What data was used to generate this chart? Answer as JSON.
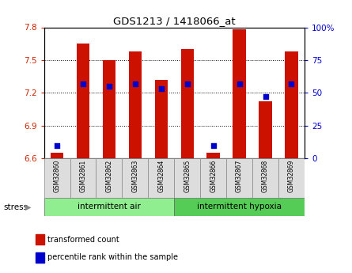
{
  "title": "GDS1213 / 1418066_at",
  "samples": [
    "GSM32860",
    "GSM32861",
    "GSM32862",
    "GSM32863",
    "GSM32864",
    "GSM32865",
    "GSM32866",
    "GSM32867",
    "GSM32868",
    "GSM32869"
  ],
  "bar_tops": [
    6.65,
    7.65,
    7.5,
    7.58,
    7.32,
    7.6,
    6.65,
    7.78,
    7.12,
    7.58
  ],
  "bar_bottom": 6.6,
  "percentile_rank": [
    10,
    57,
    55,
    57,
    53,
    57,
    10,
    57,
    47,
    57
  ],
  "groups": [
    {
      "label": "intermittent air",
      "start": 0,
      "end": 5,
      "color": "#90EE90"
    },
    {
      "label": "intermittent hypoxia",
      "start": 5,
      "end": 10,
      "color": "#55CC55"
    }
  ],
  "group_label": "stress",
  "ylim_left": [
    6.6,
    7.8
  ],
  "ylim_right": [
    0,
    100
  ],
  "yticks_left": [
    6.6,
    6.9,
    7.2,
    7.5,
    7.8
  ],
  "yticks_right": [
    0,
    25,
    50,
    75,
    100
  ],
  "bar_color": "#CC1100",
  "percentile_color": "#0000CC",
  "bar_width": 0.5,
  "plot_bg": "#FFFFFF",
  "tick_label_color_left": "#CC2200",
  "tick_label_color_right": "#0000CC",
  "sample_box_color": "#DDDDDD",
  "legend_items": [
    {
      "color": "#CC1100",
      "label": "transformed count"
    },
    {
      "color": "#0000CC",
      "label": "percentile rank within the sample"
    }
  ]
}
